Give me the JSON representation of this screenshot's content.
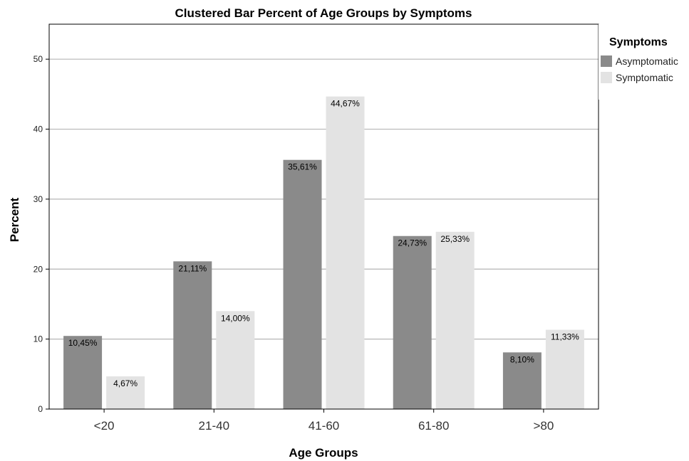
{
  "chart_data": {
    "type": "bar",
    "title": "Clustered Bar Percent of Age Groups by Symptoms",
    "xlabel": "Age Groups",
    "ylabel": "Percent",
    "categories": [
      "<20",
      "21-40",
      "41-60",
      "61-80",
      ">80"
    ],
    "series": [
      {
        "name": "Asymptomatic",
        "values": [
          10.45,
          21.11,
          35.61,
          24.73,
          8.1
        ],
        "labels": [
          "10,45%",
          "21,11%",
          "35,61%",
          "24,73%",
          "8,10%"
        ],
        "color": "#8a8a8a"
      },
      {
        "name": "Symptomatic",
        "values": [
          4.67,
          14.0,
          44.67,
          25.33,
          11.33
        ],
        "labels": [
          "4,67%",
          "14,00%",
          "44,67%",
          "25,33%",
          "11,33%"
        ],
        "color": "#e3e3e3"
      }
    ],
    "ylim": [
      0,
      55
    ],
    "yticks": [
      0,
      10,
      20,
      30,
      40,
      50
    ],
    "ytick_labels": [
      "0",
      "10",
      "20",
      "30",
      "40",
      "50"
    ],
    "grid": true,
    "legend": {
      "title": "Symptoms",
      "placement": "top-right"
    }
  }
}
